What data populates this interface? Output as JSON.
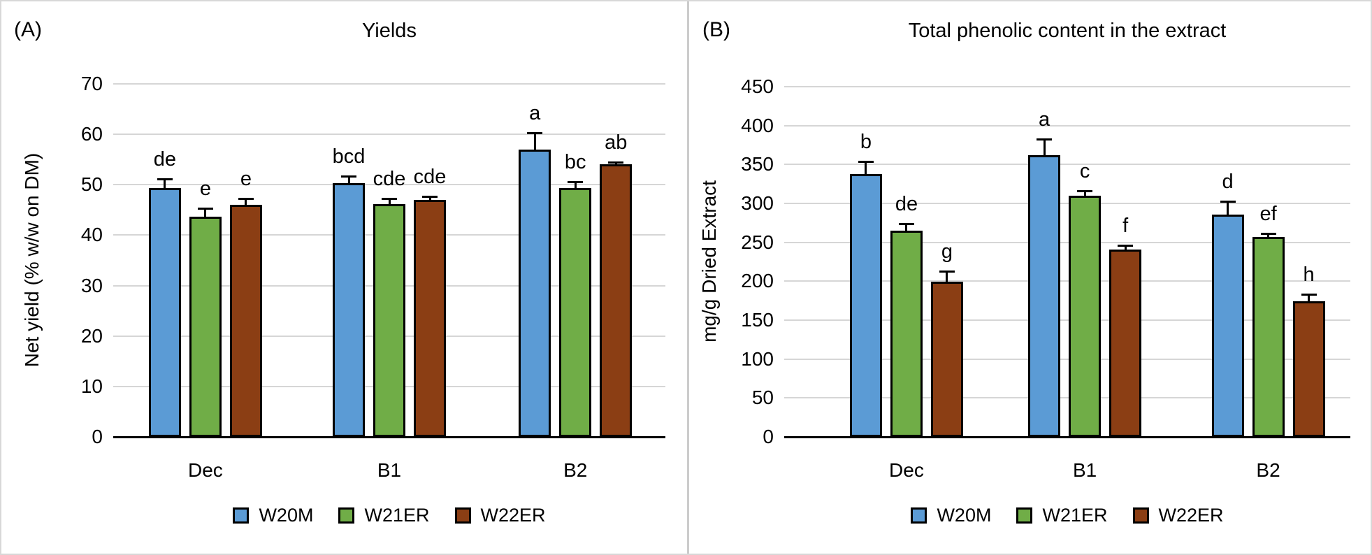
{
  "chart_data": [
    {
      "type": "bar",
      "panel_label": "(A)",
      "title": "Yields",
      "xlabel": "",
      "ylabel": "Net yield (% w/w on DM)",
      "categories": [
        "Dec",
        "B1",
        "B2"
      ],
      "yticks": [
        0,
        10,
        20,
        30,
        40,
        50,
        60,
        70
      ],
      "ylim": [
        0,
        70
      ],
      "grid": true,
      "legend_position": "bottom",
      "series": [
        {
          "name": "W20M",
          "color": "#5B9BD5",
          "values": [
            49.3,
            50.3,
            57.0
          ],
          "errors": [
            1.8,
            1.4,
            3.3
          ],
          "letters": [
            "de",
            "bcd",
            "a"
          ]
        },
        {
          "name": "W21ER",
          "color": "#70AD47",
          "values": [
            43.7,
            46.2,
            49.4
          ],
          "errors": [
            1.6,
            1.1,
            1.2
          ],
          "letters": [
            "e",
            "cde",
            "bc"
          ]
        },
        {
          "name": "W22ER",
          "color": "#8B3E14",
          "values": [
            46.0,
            47.0,
            54.0
          ],
          "errors": [
            1.2,
            0.7,
            0.5
          ],
          "letters": [
            "e",
            "cde",
            "ab"
          ]
        }
      ]
    },
    {
      "type": "bar",
      "panel_label": "(B)",
      "title": "Total phenolic content in the extract",
      "xlabel": "",
      "ylabel": "mg/g Dried Extract",
      "categories": [
        "Dec",
        "B1",
        "B2"
      ],
      "yticks": [
        0,
        50,
        100,
        150,
        200,
        250,
        300,
        350,
        400,
        450
      ],
      "ylim": [
        0,
        450
      ],
      "grid": true,
      "legend_position": "bottom",
      "series": [
        {
          "name": "W20M",
          "color": "#5B9BD5",
          "values": [
            338,
            362,
            286
          ],
          "errors": [
            16,
            21,
            17
          ],
          "letters": [
            "b",
            "a",
            "d"
          ]
        },
        {
          "name": "W21ER",
          "color": "#70AD47",
          "values": [
            265,
            310,
            257
          ],
          "errors": [
            9,
            6,
            4
          ],
          "letters": [
            "de",
            "c",
            "ef"
          ]
        },
        {
          "name": "W22ER",
          "color": "#8B3E14",
          "values": [
            199,
            241,
            174
          ],
          "errors": [
            14,
            5,
            9
          ],
          "letters": [
            "g",
            "f",
            "h"
          ]
        }
      ]
    }
  ]
}
